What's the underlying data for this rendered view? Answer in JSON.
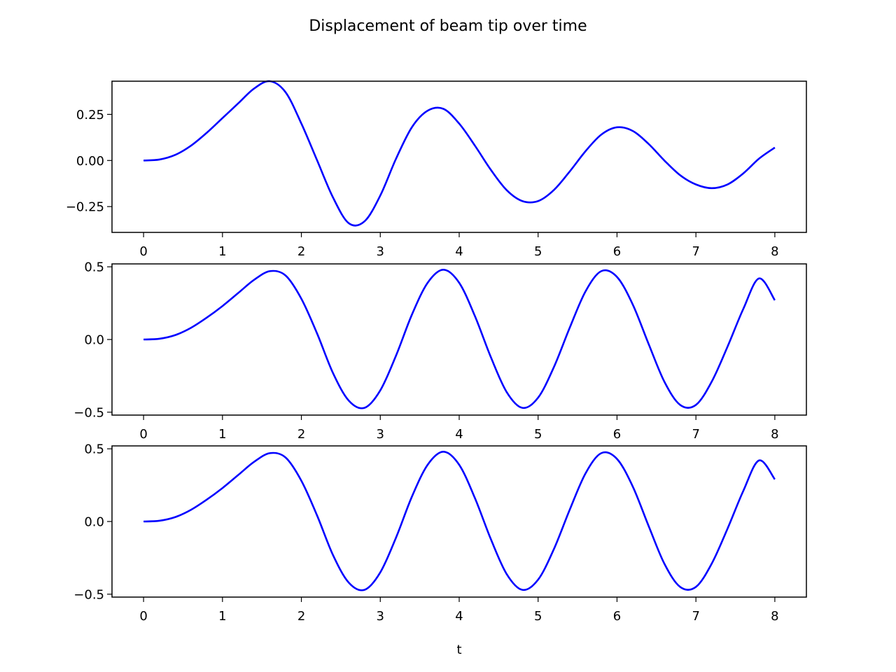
{
  "chart_data": [
    {
      "type": "line",
      "title": "Displacement of beam tip over time",
      "xlabel": "",
      "ylabel": "",
      "xlim": [
        -0.4,
        8.4
      ],
      "ylim": [
        -0.39,
        0.43
      ],
      "xticks": [
        0,
        1,
        2,
        3,
        4,
        5,
        6,
        7,
        8
      ],
      "xtick_labels": [
        "0",
        "1",
        "2",
        "3",
        "4",
        "5",
        "6",
        "7",
        "8"
      ],
      "yticks": [
        0.25,
        0.0,
        -0.25
      ],
      "ytick_labels": [
        "0.25",
        "0.00",
        "−0.25"
      ],
      "grid": false,
      "color": "#0000ff",
      "series": [
        {
          "x": [
            0,
            0.2,
            0.4,
            0.6,
            0.8,
            1.0,
            1.2,
            1.4,
            1.6,
            1.8,
            2.0,
            2.2,
            2.4,
            2.6,
            2.8,
            3.0,
            3.2,
            3.4,
            3.6,
            3.8,
            4.0,
            4.2,
            4.4,
            4.6,
            4.8,
            5.0,
            5.2,
            5.4,
            5.6,
            5.8,
            6.0,
            6.2,
            6.4,
            6.6,
            6.8,
            7.0,
            7.2,
            7.4,
            7.6,
            7.8,
            8.0
          ],
          "y": [
            0.0,
            0.005,
            0.03,
            0.08,
            0.15,
            0.23,
            0.31,
            0.39,
            0.43,
            0.37,
            0.2,
            0.0,
            -0.2,
            -0.34,
            -0.33,
            -0.19,
            0.01,
            0.18,
            0.27,
            0.28,
            0.2,
            0.08,
            -0.05,
            -0.16,
            -0.22,
            -0.22,
            -0.16,
            -0.06,
            0.05,
            0.14,
            0.18,
            0.16,
            0.09,
            0.0,
            -0.08,
            -0.13,
            -0.15,
            -0.13,
            -0.07,
            0.01,
            0.07
          ]
        }
      ]
    },
    {
      "type": "line",
      "xlabel": "",
      "ylabel": "",
      "xlim": [
        -0.4,
        8.4
      ],
      "ylim": [
        -0.52,
        0.52
      ],
      "xticks": [
        0,
        1,
        2,
        3,
        4,
        5,
        6,
        7,
        8
      ],
      "xtick_labels": [
        "0",
        "1",
        "2",
        "3",
        "4",
        "5",
        "6",
        "7",
        "8"
      ],
      "yticks": [
        0.5,
        0.0,
        -0.5
      ],
      "ytick_labels": [
        "0.5",
        "0.0",
        "−0.5"
      ],
      "grid": false,
      "color": "#0000ff",
      "series": [
        {
          "x": [
            0,
            0.2,
            0.4,
            0.6,
            0.8,
            1.0,
            1.2,
            1.4,
            1.6,
            1.8,
            2.0,
            2.2,
            2.4,
            2.6,
            2.8,
            3.0,
            3.2,
            3.4,
            3.6,
            3.8,
            4.0,
            4.2,
            4.4,
            4.6,
            4.8,
            5.0,
            5.2,
            5.4,
            5.6,
            5.8,
            6.0,
            6.2,
            6.4,
            6.6,
            6.8,
            7.0,
            7.2,
            7.4,
            7.6,
            7.8,
            8.0
          ],
          "y": [
            0.0,
            0.005,
            0.03,
            0.08,
            0.15,
            0.23,
            0.32,
            0.41,
            0.47,
            0.44,
            0.28,
            0.04,
            -0.23,
            -0.42,
            -0.47,
            -0.35,
            -0.11,
            0.17,
            0.39,
            0.48,
            0.39,
            0.16,
            -0.12,
            -0.36,
            -0.47,
            -0.4,
            -0.19,
            0.08,
            0.33,
            0.47,
            0.43,
            0.24,
            -0.03,
            -0.29,
            -0.45,
            -0.45,
            -0.29,
            -0.05,
            0.21,
            0.42,
            0.27
          ]
        }
      ]
    },
    {
      "type": "line",
      "xlabel": "t",
      "ylabel": "",
      "xlim": [
        -0.4,
        8.4
      ],
      "ylim": [
        -0.52,
        0.52
      ],
      "xticks": [
        0,
        1,
        2,
        3,
        4,
        5,
        6,
        7,
        8
      ],
      "xtick_labels": [
        "0",
        "1",
        "2",
        "3",
        "4",
        "5",
        "6",
        "7",
        "8"
      ],
      "yticks": [
        0.5,
        0.0,
        -0.5
      ],
      "ytick_labels": [
        "0.5",
        "0.0",
        "−0.5"
      ],
      "grid": false,
      "color": "#0000ff",
      "series": [
        {
          "x": [
            0,
            0.2,
            0.4,
            0.6,
            0.8,
            1.0,
            1.2,
            1.4,
            1.6,
            1.8,
            2.0,
            2.2,
            2.4,
            2.6,
            2.8,
            3.0,
            3.2,
            3.4,
            3.6,
            3.8,
            4.0,
            4.2,
            4.4,
            4.6,
            4.8,
            5.0,
            5.2,
            5.4,
            5.6,
            5.8,
            6.0,
            6.2,
            6.4,
            6.6,
            6.8,
            7.0,
            7.2,
            7.4,
            7.6,
            7.8,
            8.0
          ],
          "y": [
            0.0,
            0.005,
            0.03,
            0.08,
            0.15,
            0.23,
            0.32,
            0.41,
            0.47,
            0.44,
            0.28,
            0.04,
            -0.23,
            -0.42,
            -0.47,
            -0.35,
            -0.11,
            0.17,
            0.39,
            0.48,
            0.39,
            0.16,
            -0.12,
            -0.36,
            -0.47,
            -0.4,
            -0.19,
            0.08,
            0.33,
            0.47,
            0.43,
            0.24,
            -0.03,
            -0.29,
            -0.45,
            -0.45,
            -0.29,
            -0.05,
            0.21,
            0.42,
            0.29
          ]
        }
      ]
    }
  ]
}
